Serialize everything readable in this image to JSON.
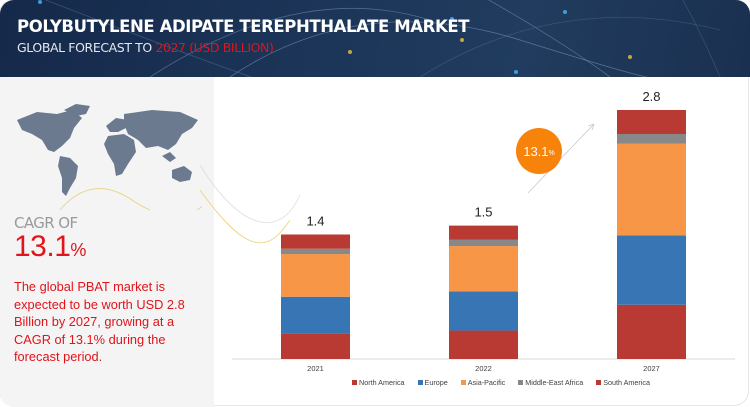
{
  "header": {
    "title": "POLYBUTYLENE ADIPATE TEREPHTHALATE MARKET",
    "subtitle_prefix": "GLOBAL FORECAST TO ",
    "subtitle_highlight": "2027 (USD BILLION)"
  },
  "left_panel": {
    "cagr_label": "CAGR OF",
    "cagr_value": "13.1",
    "cagr_unit": "%",
    "description": "The global PBAT market is expected to be worth USD 2.8 Billion by 2027, growing at a CAGR of 13.1% during the forecast period."
  },
  "growth_bubble": {
    "value": "13.1",
    "unit": "%"
  },
  "colors": {
    "accent_red": "#e0141b",
    "bubble_orange": "#f7830b",
    "header_bg": "#1c3659"
  },
  "chart_data": {
    "type": "bar",
    "stacked": true,
    "title": "Polybutylene Adipate Terephthalate Market, Global Forecast to 2027 (USD Billion)",
    "xlabel": "",
    "ylabel": "USD Billion",
    "ylim": [
      0,
      2.8
    ],
    "grid": false,
    "legend_position": "bottom",
    "categories": [
      "2021",
      "2022",
      "2027"
    ],
    "totals": [
      "1.4",
      "1.5",
      "2.8"
    ],
    "series": [
      {
        "name": "North America",
        "color": "#b93a32",
        "values": [
          0.29,
          0.32,
          0.61
        ]
      },
      {
        "name": "Europe",
        "color": "#3875b5",
        "values": [
          0.41,
          0.44,
          0.78
        ]
      },
      {
        "name": "Asia-Pacific",
        "color": "#f79646",
        "values": [
          0.48,
          0.51,
          1.03
        ]
      },
      {
        "name": "Middle-East Africa",
        "color": "#888888",
        "values": [
          0.06,
          0.07,
          0.11
        ]
      },
      {
        "name": "South America",
        "color": "#b93a32",
        "values": [
          0.16,
          0.16,
          0.27
        ]
      }
    ]
  }
}
